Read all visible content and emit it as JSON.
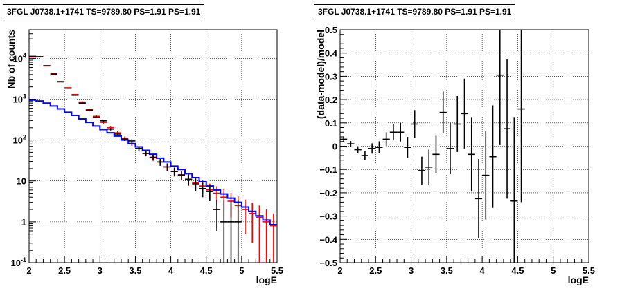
{
  "chart_data": [
    {
      "type": "histogram",
      "title": "3FGL J0738.1+1741 TS=9789.80 PS=1.91 PS=1.91",
      "xlabel": "logE",
      "ylabel": "Nb of counts",
      "xlim": [
        2,
        5.5
      ],
      "ylim": [
        0.1,
        50000
      ],
      "yscale": "log",
      "grid": true,
      "x_ticks": [
        "2",
        "2.5",
        "3",
        "3.5",
        "4",
        "4.5",
        "5",
        "5.5"
      ],
      "y_ticks": [
        {
          "value": 0.1,
          "base": "10",
          "exp": "-1"
        },
        {
          "value": 1,
          "base": "1",
          "exp": ""
        },
        {
          "value": 10,
          "base": "10",
          "exp": ""
        },
        {
          "value": 100,
          "base": "10",
          "exp": "2"
        },
        {
          "value": 1000,
          "base": "10",
          "exp": "3"
        },
        {
          "value": 10000,
          "base": "10",
          "exp": "4"
        }
      ],
      "bin_width": 0.1,
      "x": [
        2.05,
        2.15,
        2.25,
        2.35,
        2.45,
        2.55,
        2.65,
        2.75,
        2.85,
        2.95,
        3.05,
        3.15,
        3.25,
        3.35,
        3.45,
        3.55,
        3.65,
        3.75,
        3.85,
        3.95,
        4.05,
        4.15,
        4.25,
        4.35,
        4.45,
        4.55,
        4.65,
        4.75,
        4.85,
        4.95,
        5.05,
        5.15,
        5.25,
        5.35,
        5.45
      ],
      "series": [
        {
          "style": "model-steps",
          "color": "#0000ff",
          "values": [
            950,
            900,
            800,
            680,
            580,
            480,
            400,
            330,
            270,
            220,
            180,
            150,
            125,
            100,
            82,
            68,
            56,
            45,
            36,
            29,
            23,
            19,
            15,
            12,
            9.5,
            7.5,
            6.0,
            4.8,
            3.8,
            3.0,
            2.3,
            1.8,
            1.4,
            1.1,
            0.85
          ]
        },
        {
          "style": "model-errors",
          "color": "#ff0000",
          "values": [
            11000,
            11000,
            6500,
            4200,
            2700,
            1900,
            1300,
            850,
            560,
            380,
            270,
            200,
            150,
            110,
            82,
            62,
            47,
            37,
            29,
            22,
            17,
            14,
            11,
            9.0,
            7.5,
            6.0,
            5.0,
            4.0,
            3.2,
            2.5,
            2.0,
            1.6,
            1.3,
            1.0,
            0.8
          ],
          "err_lo": [
            180,
            180,
            110,
            80,
            60,
            50,
            42,
            34,
            28,
            23,
            19,
            16,
            14,
            12,
            10,
            8.5,
            7.2,
            6.2,
            5.5,
            4.8,
            4.2,
            3.8,
            3.4,
            3.0,
            2.8,
            2.6,
            2.4,
            2.2,
            1.9,
            1.7,
            1.5,
            1.3,
            1.2,
            1.0,
            0.8
          ],
          "err_hi": [
            180,
            180,
            110,
            80,
            60,
            50,
            42,
            34,
            28,
            23,
            19,
            16,
            14,
            12,
            10,
            8.5,
            7.2,
            6.2,
            5.5,
            4.8,
            4.2,
            3.8,
            3.4,
            3.0,
            2.8,
            2.6,
            2.4,
            2.2,
            1.9,
            1.7,
            1.5,
            1.3,
            1.2,
            1.0,
            0.8
          ]
        },
        {
          "style": "data-points",
          "color": "#000000",
          "x": [
            2.05,
            2.15,
            2.25,
            2.35,
            2.45,
            2.55,
            2.65,
            2.75,
            2.85,
            2.95,
            3.05,
            3.15,
            3.25,
            3.35,
            3.45,
            3.55,
            3.65,
            3.75,
            3.85,
            3.95,
            4.05,
            4.15,
            4.25,
            4.35,
            4.45,
            4.55,
            4.65,
            4.75,
            4.85,
            4.95
          ],
          "values": [
            11200,
            10900,
            6600,
            4100,
            2650,
            1850,
            1250,
            800,
            540,
            360,
            295,
            185,
            140,
            105,
            95,
            62,
            47,
            38,
            29,
            22,
            17,
            14,
            11,
            8.5,
            6.5,
            5.5,
            2.0,
            1.0,
            1.0,
            1.0
          ],
          "err_lo": [
            106,
            104,
            81,
            64,
            51,
            43,
            35,
            28,
            23,
            19,
            17,
            13.6,
            11.8,
            10.2,
            9.7,
            7.9,
            6.8,
            6.2,
            5.4,
            4.7,
            4.1,
            3.7,
            3.3,
            2.9,
            2.5,
            2.3,
            1.4,
            0.99,
            0.99,
            0.99
          ],
          "err_hi": [
            106,
            104,
            81,
            64,
            51,
            43,
            35,
            28,
            23,
            19,
            17,
            13.6,
            11.8,
            10.2,
            9.7,
            7.9,
            6.8,
            6.2,
            5.4,
            4.7,
            4.1,
            3.7,
            3.3,
            2.9,
            2.5,
            2.3,
            1.4,
            2.3,
            2.3,
            2.3
          ]
        }
      ]
    },
    {
      "type": "scatter",
      "title": "3FGL J0738.1+1741 TS=9789.80 PS=1.91 PS=1.91",
      "xlabel": "logE",
      "ylabel": "(data-model)/model",
      "xlim": [
        2,
        5.5
      ],
      "ylim": [
        -0.5,
        0.5
      ],
      "grid": true,
      "x_ticks": [
        "2",
        "2.5",
        "3",
        "3.5",
        "4",
        "4.5",
        "5",
        "5.5"
      ],
      "y_ticks": [
        "−0.5",
        "−0.4",
        "−0.3",
        "−0.2",
        "−0.1",
        "0",
        "0.1",
        "0.2",
        "0.3",
        "0.4",
        "0.5"
      ],
      "bin_width": 0.1,
      "series": [
        {
          "color": "#000000",
          "x": [
            2.05,
            2.15,
            2.25,
            2.35,
            2.45,
            2.55,
            2.65,
            2.75,
            2.85,
            2.95,
            3.05,
            3.15,
            3.25,
            3.35,
            3.45,
            3.55,
            3.65,
            3.75,
            3.85,
            3.95,
            4.05,
            4.15,
            4.25,
            4.35,
            4.45,
            4.55
          ],
          "y": [
            0.03,
            0.01,
            -0.015,
            -0.04,
            -0.01,
            -0.005,
            0.03,
            0.06,
            0.06,
            -0.005,
            0.095,
            -0.105,
            -0.09,
            -0.035,
            0.145,
            -0.01,
            0.095,
            0.14,
            -0.035,
            -0.225,
            -0.125,
            -0.045,
            0.305,
            0.075,
            -0.235,
            0.16
          ],
          "err": [
            0.012,
            0.012,
            0.015,
            0.018,
            0.022,
            0.026,
            0.03,
            0.035,
            0.04,
            0.045,
            0.06,
            0.06,
            0.075,
            0.08,
            0.09,
            0.11,
            0.12,
            0.15,
            0.16,
            0.17,
            0.19,
            0.22,
            0.3,
            0.3,
            0.36,
            0.4
          ]
        }
      ]
    }
  ]
}
